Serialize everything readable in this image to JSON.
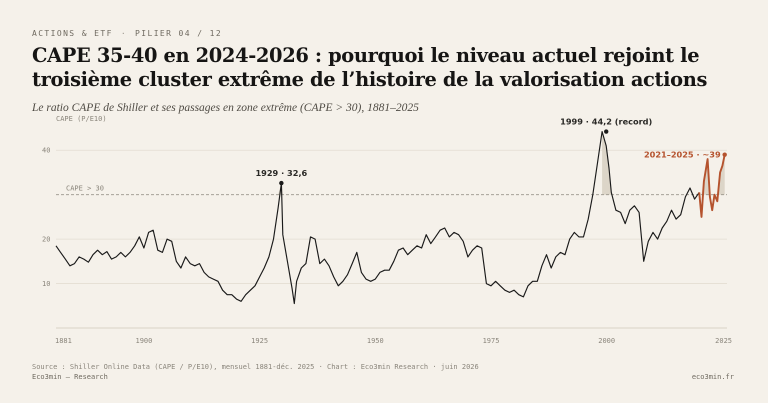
{
  "header": {
    "kicker_section": "ACTIONS & ETF",
    "kicker_separator": "·",
    "kicker_pillar": "PILIER 04 / 12",
    "title": "CAPE 35-40 en 2024-2026 : pourquoi le niveau actuel rejoint le troisième cluster extrême de l’histoire de la valorisation actions",
    "subtitle": "Le ratio CAPE de Shiller et ses passages en zone extrême (CAPE > 30), 1881–2025"
  },
  "chart_data": {
    "type": "line",
    "ylabel": "CAPE (P/E10)",
    "ylim": [
      0,
      45
    ],
    "xlim": [
      1881,
      2026
    ],
    "y_ticks": [
      10,
      20,
      40
    ],
    "y_tick_labels": [
      "10",
      "20",
      "40"
    ],
    "x_ticks": [
      1881,
      1900,
      1925,
      1950,
      1975,
      2000,
      2025
    ],
    "x_tick_labels": [
      "1881",
      "1900",
      "1925",
      "1950",
      "1975",
      "2000",
      "2025"
    ],
    "threshold": {
      "value": 30,
      "label": "CAPE > 30"
    },
    "colors": {
      "main": "#1a1a1a",
      "recent": "#b5532e",
      "fill": "#dcd5c8",
      "threshold": "#9a958b"
    },
    "series": [
      {
        "x": [
          1881,
          1882,
          1883,
          1884,
          1885,
          1886,
          1887,
          1888,
          1889,
          1890,
          1891,
          1892,
          1893,
          1894,
          1895,
          1896,
          1897,
          1898,
          1899,
          1900,
          1901,
          1902,
          1903,
          1904,
          1905,
          1906,
          1907,
          1908,
          1909,
          1910,
          1911,
          1912,
          1913,
          1914,
          1915,
          1916,
          1917,
          1918,
          1919,
          1920,
          1921,
          1922,
          1923,
          1924,
          1925,
          1926,
          1927,
          1928,
          1929,
          1929.7,
          1930,
          1931,
          1932,
          1932.5,
          1933,
          1934,
          1935,
          1936,
          1937,
          1938,
          1939,
          1940,
          1941,
          1942,
          1943,
          1944,
          1945,
          1946,
          1947,
          1948,
          1949,
          1950,
          1951,
          1952,
          1953,
          1954,
          1955,
          1956,
          1957,
          1958,
          1959,
          1960,
          1961,
          1962,
          1963,
          1964,
          1965,
          1966,
          1967,
          1968,
          1969,
          1970,
          1971,
          1972,
          1973,
          1974,
          1975,
          1976,
          1977,
          1978,
          1979,
          1980,
          1981,
          1982,
          1983,
          1984,
          1985,
          1986,
          1987,
          1988,
          1989,
          1990,
          1991,
          1992,
          1993,
          1994,
          1995,
          1996,
          1997,
          1998,
          1999,
          1999.9,
          2000.5,
          2001,
          2002,
          2003,
          2004,
          2005,
          2006,
          2007,
          2008,
          2009,
          2010,
          2011,
          2012,
          2013,
          2014,
          2015,
          2016,
          2017,
          2018,
          2019,
          2020
        ],
        "values": [
          18.5,
          17.0,
          15.5,
          14.0,
          14.5,
          16.0,
          15.5,
          14.8,
          16.5,
          17.5,
          16.5,
          17.2,
          15.5,
          16.0,
          17.0,
          16.0,
          17.0,
          18.5,
          20.5,
          18.0,
          21.5,
          22.0,
          17.5,
          17.0,
          20.0,
          19.5,
          15.0,
          13.5,
          16.0,
          14.5,
          14.0,
          14.5,
          12.5,
          11.5,
          11.0,
          10.5,
          8.5,
          7.5,
          7.5,
          6.5,
          6.0,
          7.5,
          8.5,
          9.5,
          11.5,
          13.5,
          16.0,
          20.0,
          27.0,
          32.6,
          21.0,
          15.0,
          9.0,
          5.5,
          10.5,
          13.5,
          14.5,
          20.5,
          20.0,
          14.5,
          15.5,
          14.0,
          11.5,
          9.5,
          10.5,
          12.0,
          14.5,
          17.0,
          12.5,
          11.0,
          10.5,
          11.0,
          12.5,
          13.0,
          13.0,
          15.0,
          17.5,
          18.0,
          16.5,
          17.5,
          18.5,
          18.0,
          21.0,
          19.0,
          20.5,
          22.0,
          22.5,
          20.5,
          21.5,
          21.0,
          19.5,
          16.0,
          17.5,
          18.5,
          18.0,
          10.0,
          9.5,
          10.5,
          9.5,
          8.5,
          8.0,
          8.5,
          7.5,
          7.0,
          9.5,
          10.5,
          10.5,
          14.0,
          16.5,
          13.5,
          16.0,
          17.0,
          16.5,
          20.0,
          21.5,
          20.5,
          20.5,
          24.5,
          30.0,
          37.0,
          44.2,
          41.0,
          36.0,
          30.5,
          26.5,
          26.0,
          23.5,
          26.5,
          27.5,
          26.0,
          15.0,
          19.5,
          21.5,
          20.0,
          22.5,
          24.0,
          26.5,
          24.5,
          25.5,
          29.5,
          31.5,
          29.0,
          30.5
        ]
      },
      {
        "name": "2021–2025",
        "x": [
          2020,
          2020.5,
          2021,
          2021.8,
          2022.3,
          2022.8,
          2023.3,
          2023.9,
          2024.5,
          2025,
          2025.5
        ],
        "values": [
          30.5,
          25.0,
          33.0,
          38.0,
          29.5,
          26.5,
          30.0,
          28.5,
          35.0,
          36.5,
          39.0
        ]
      }
    ],
    "annotations": [
      {
        "x": 1929.7,
        "y": 32.6,
        "text": "1929 · 32,6"
      },
      {
        "x": 1999.9,
        "y": 44.2,
        "text": "1999 · 44,2 (record)"
      },
      {
        "x": 2025.5,
        "y": 39.0,
        "text": "2021–2025 · ~39"
      }
    ]
  },
  "footer": {
    "source": "Source : Shiller Online Data (CAPE / P/E10), mensuel 1881-déc. 2025 · Chart : Eco3min Research · juin 2026",
    "brand_left": "Eco3min — Research",
    "brand_right": "eco3min.fr"
  }
}
